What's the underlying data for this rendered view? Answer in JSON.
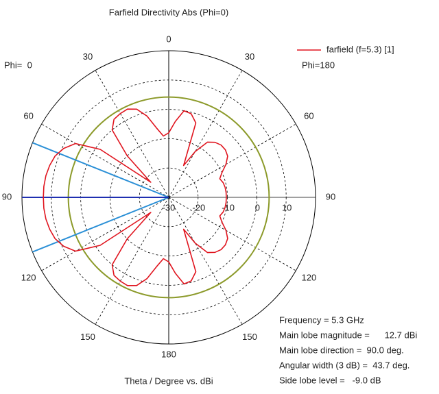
{
  "chart_data": {
    "type": "polar",
    "title": "Farfield Directivity Abs (Phi=0)",
    "left_label": "Phi=  0",
    "right_label": "Phi=180",
    "x_label": "Theta / Degree vs. dBi",
    "series": [
      {
        "name": "farfield (f=5.3) [1]",
        "color": "#e0141e",
        "angles": [
          0,
          5,
          10,
          15,
          20,
          25,
          30,
          35,
          40,
          45,
          50,
          55,
          60,
          65,
          70,
          75,
          80,
          85,
          90,
          95,
          100,
          105,
          110,
          115,
          120,
          125,
          130,
          135,
          140,
          145,
          150,
          155,
          160,
          165,
          170,
          175,
          180,
          185,
          190,
          195,
          200,
          205,
          210,
          215,
          220,
          225,
          230,
          235,
          240,
          245,
          250,
          255,
          260,
          265,
          270,
          275,
          280,
          285,
          290,
          295,
          300,
          305,
          310,
          315,
          320,
          325,
          330,
          335,
          340,
          345,
          350,
          355,
          360
        ],
        "values": [
          -8,
          -4,
          0,
          -0.5,
          -3,
          -18,
          -12,
          -7,
          -5.5,
          -4.8,
          -4.8,
          -5.5,
          -7.5,
          -10,
          -11.5,
          -10.8,
          -10.5,
          -10.4,
          -10.4,
          -10.4,
          -10.5,
          -10.8,
          -11.5,
          -10,
          -7.5,
          -5.5,
          -4.8,
          -4.8,
          -5.5,
          -7,
          -12,
          -18,
          -3,
          -0.5,
          0,
          -4,
          -8,
          -9,
          -6,
          -1.3,
          2,
          3.2,
          3,
          2.5,
          0,
          -10,
          -22,
          -1.5,
          6.7,
          9.5,
          11.2,
          12,
          12.5,
          12.7,
          12.7,
          12.7,
          12.5,
          12,
          11.2,
          9.5,
          6.7,
          -1.5,
          -22,
          -10,
          0,
          2.5,
          3,
          3.2,
          2,
          -1.3,
          -6,
          -9,
          -8
        ]
      }
    ],
    "rlim": [
      -30,
      20
    ],
    "rticks": [
      -30,
      -20,
      -10,
      0,
      10
    ],
    "angle_ticks": [
      0,
      30,
      60,
      90,
      120,
      150,
      180,
      {
        "value": 210,
        "label": "150"
      },
      {
        "value": 240,
        "label": "120"
      },
      {
        "value": 270,
        "label": "90"
      },
      {
        "value": 300,
        "label": "60"
      },
      {
        "value": 330,
        "label": "30"
      }
    ],
    "reference_circle": {
      "value": 4.2,
      "color": "#8c9a2a"
    },
    "main_lobe": {
      "angle": 270,
      "width": 43.7,
      "color": "#1f2fb0",
      "width_color": "#2a8fd6"
    },
    "grid": true,
    "legend": "top-right",
    "info": [
      "Frequency = 5.3 GHz",
      "Main lobe magnitude =      12.7 dBi",
      "Main lobe direction =  90.0 deg.",
      "Angular width (3 dB) =  43.7 deg.",
      "Side lobe level =   -9.0 dB"
    ]
  }
}
